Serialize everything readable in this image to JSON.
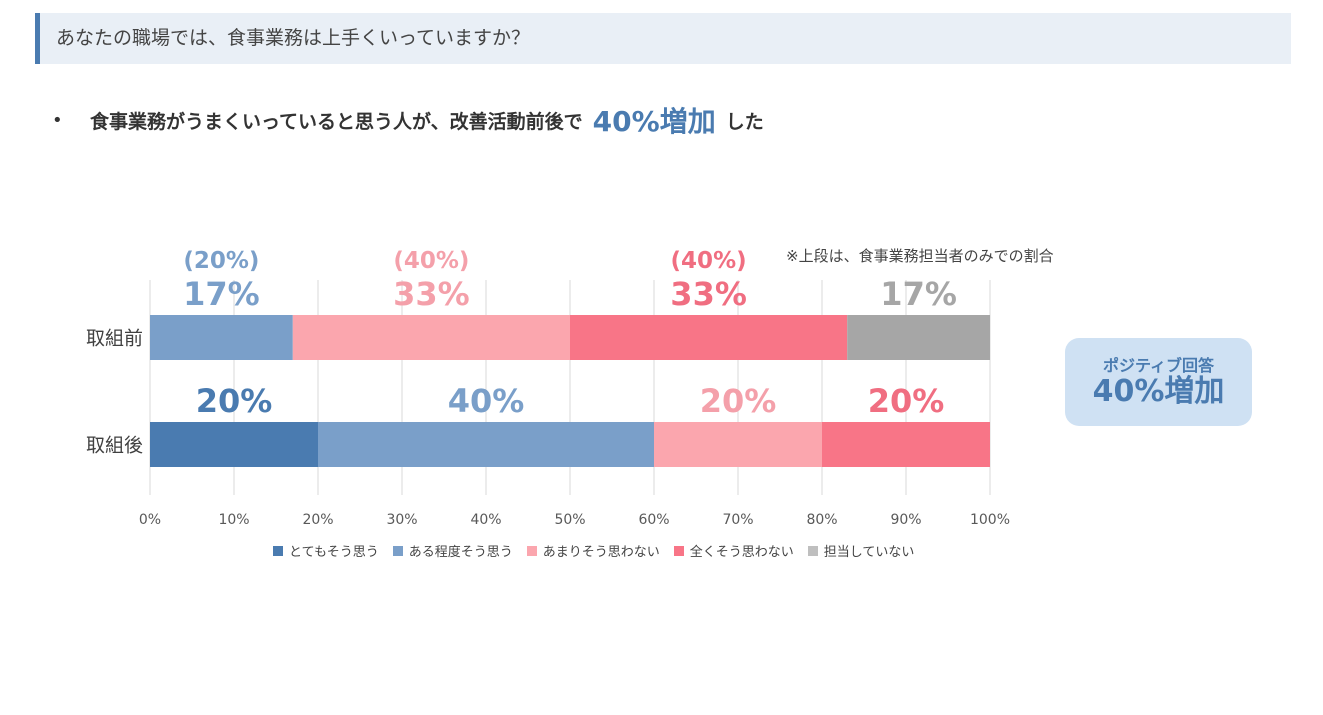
{
  "header": {
    "title": "あなたの職場では、食事業務は上手くいっていますか？"
  },
  "bullet": {
    "dot": "•",
    "text": "食事業務がうまくいっていると思う人が、改善活動前後で",
    "highlight": "40%増加",
    "suffix": "した"
  },
  "note": "※上段は、食事業務担当者のみでの割合",
  "positive_box": {
    "label": "ポジティブ回答",
    "value": "40%増加"
  },
  "chart_data": {
    "type": "bar",
    "orientation": "horizontal",
    "stacked": true,
    "title": "",
    "xlim": [
      0,
      100
    ],
    "x_ticks": [
      "0%",
      "10%",
      "20%",
      "30%",
      "40%",
      "50%",
      "60%",
      "70%",
      "80%",
      "90%",
      "100%"
    ],
    "categories": [
      "取組前",
      "取組後"
    ],
    "series": [
      {
        "name": "とてもそう思う",
        "color": "#4a7bb0",
        "values": [
          0,
          20
        ],
        "labels": [
          "",
          "20%"
        ],
        "label_color": "#4a7bb0"
      },
      {
        "name": "ある程度そう思う",
        "color": "#7a9fc9",
        "values": [
          17,
          40
        ],
        "labels": [
          "17%",
          "40%"
        ],
        "label_color": "#7a9fc9",
        "sub_labels": [
          "(20%)",
          ""
        ]
      },
      {
        "name": "あまりそう思わない",
        "color": "#fba6ae",
        "values": [
          33,
          20
        ],
        "labels": [
          "33%",
          "20%"
        ],
        "label_color": "#f4a0aa",
        "sub_labels": [
          "(40%)",
          ""
        ]
      },
      {
        "name": "全くそう思わない",
        "color": "#f87587",
        "values": [
          33,
          20
        ],
        "labels": [
          "33%",
          "20%"
        ],
        "label_color": "#f06e81",
        "sub_labels": [
          "(40%)",
          ""
        ]
      },
      {
        "name": "担当していない",
        "color": "#a6a6a6",
        "values": [
          17,
          0
        ],
        "labels": [
          "17%",
          ""
        ],
        "label_color": "#a6a6a6"
      }
    ],
    "legend_position": "bottom",
    "grid": true
  }
}
